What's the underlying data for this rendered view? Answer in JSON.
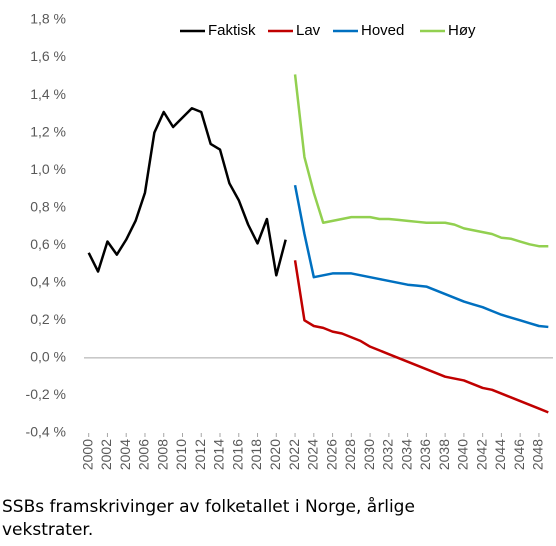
{
  "chart_data": {
    "type": "line",
    "caption": "SSBs framskrivinger av folketallet i Norge, årlige vekstrater.",
    "x": [
      2000,
      2001,
      2002,
      2003,
      2004,
      2005,
      2006,
      2007,
      2008,
      2009,
      2010,
      2011,
      2012,
      2013,
      2014,
      2015,
      2016,
      2017,
      2018,
      2019,
      2020,
      2021,
      2022,
      2023,
      2024,
      2025,
      2026,
      2027,
      2028,
      2029,
      2030,
      2031,
      2032,
      2033,
      2034,
      2035,
      2036,
      2037,
      2038,
      2039,
      2040,
      2041,
      2042,
      2043,
      2044,
      2045,
      2046,
      2047,
      2048,
      2049
    ],
    "series": [
      {
        "name": "Faktisk",
        "color": "#000000",
        "values": [
          0.56,
          0.46,
          0.62,
          0.55,
          0.63,
          0.73,
          0.88,
          1.2,
          1.31,
          1.23,
          1.28,
          1.33,
          1.31,
          1.14,
          1.11,
          0.93,
          0.84,
          0.71,
          0.61,
          0.74,
          0.44,
          0.63,
          null,
          null,
          null,
          null,
          null,
          null,
          null,
          null,
          null,
          null,
          null,
          null,
          null,
          null,
          null,
          null,
          null,
          null,
          null,
          null,
          null,
          null,
          null,
          null,
          null,
          null,
          null,
          null
        ]
      },
      {
        "name": "Lav",
        "color": "#c00000",
        "values": [
          null,
          null,
          null,
          null,
          null,
          null,
          null,
          null,
          null,
          null,
          null,
          null,
          null,
          null,
          null,
          null,
          null,
          null,
          null,
          null,
          null,
          null,
          0.52,
          0.2,
          0.17,
          0.16,
          0.14,
          0.13,
          0.11,
          0.09,
          0.06,
          0.04,
          0.02,
          0.0,
          -0.02,
          -0.04,
          -0.06,
          -0.08,
          -0.1,
          -0.11,
          -0.12,
          -0.14,
          -0.16,
          -0.17,
          -0.19,
          -0.21,
          -0.23,
          -0.25,
          -0.27,
          -0.29
        ]
      },
      {
        "name": "Hoved",
        "color": "#0070c0",
        "values": [
          null,
          null,
          null,
          null,
          null,
          null,
          null,
          null,
          null,
          null,
          null,
          null,
          null,
          null,
          null,
          null,
          null,
          null,
          null,
          null,
          null,
          null,
          0.92,
          0.66,
          0.43,
          0.44,
          0.45,
          0.45,
          0.45,
          0.44,
          0.43,
          0.42,
          0.41,
          0.4,
          0.39,
          0.385,
          0.38,
          0.36,
          0.34,
          0.32,
          0.3,
          0.285,
          0.27,
          0.25,
          0.23,
          0.215,
          0.2,
          0.185,
          0.17,
          0.165
        ]
      },
      {
        "name": "Høy",
        "color": "#92d050",
        "values": [
          null,
          null,
          null,
          null,
          null,
          null,
          null,
          null,
          null,
          null,
          null,
          null,
          null,
          null,
          null,
          null,
          null,
          null,
          null,
          null,
          null,
          null,
          1.51,
          1.07,
          0.88,
          0.72,
          0.73,
          0.74,
          0.75,
          0.75,
          0.75,
          0.74,
          0.74,
          0.735,
          0.73,
          0.725,
          0.72,
          0.72,
          0.72,
          0.71,
          0.69,
          0.68,
          0.67,
          0.66,
          0.64,
          0.635,
          0.62,
          0.605,
          0.595,
          0.595
        ]
      }
    ],
    "xlim": [
      1999.5,
      2049.5
    ],
    "xticks": [
      2000,
      2002,
      2004,
      2006,
      2008,
      2010,
      2012,
      2014,
      2016,
      2018,
      2020,
      2022,
      2024,
      2026,
      2028,
      2030,
      2032,
      2034,
      2036,
      2038,
      2040,
      2042,
      2044,
      2046,
      2048
    ],
    "ylim": [
      -0.4,
      1.8
    ],
    "yticks": [
      {
        "value": -0.4,
        "label": "-0,4 %"
      },
      {
        "value": -0.2,
        "label": "-0,2 %"
      },
      {
        "value": 0,
        "label": "0,0 %"
      },
      {
        "value": 0.2,
        "label": "0,2 %"
      },
      {
        "value": 0.4,
        "label": "0,4 %"
      },
      {
        "value": 0.6,
        "label": "0,6 %"
      },
      {
        "value": 0.8,
        "label": "0,8 %"
      },
      {
        "value": 1.0,
        "label": "1,0 %"
      },
      {
        "value": 1.2,
        "label": "1,2 %"
      },
      {
        "value": 1.4,
        "label": "1,4 %"
      },
      {
        "value": 1.6,
        "label": "1,6 %"
      },
      {
        "value": 1.8,
        "label": "1,8 %"
      }
    ],
    "grid": false,
    "legend": "top"
  }
}
